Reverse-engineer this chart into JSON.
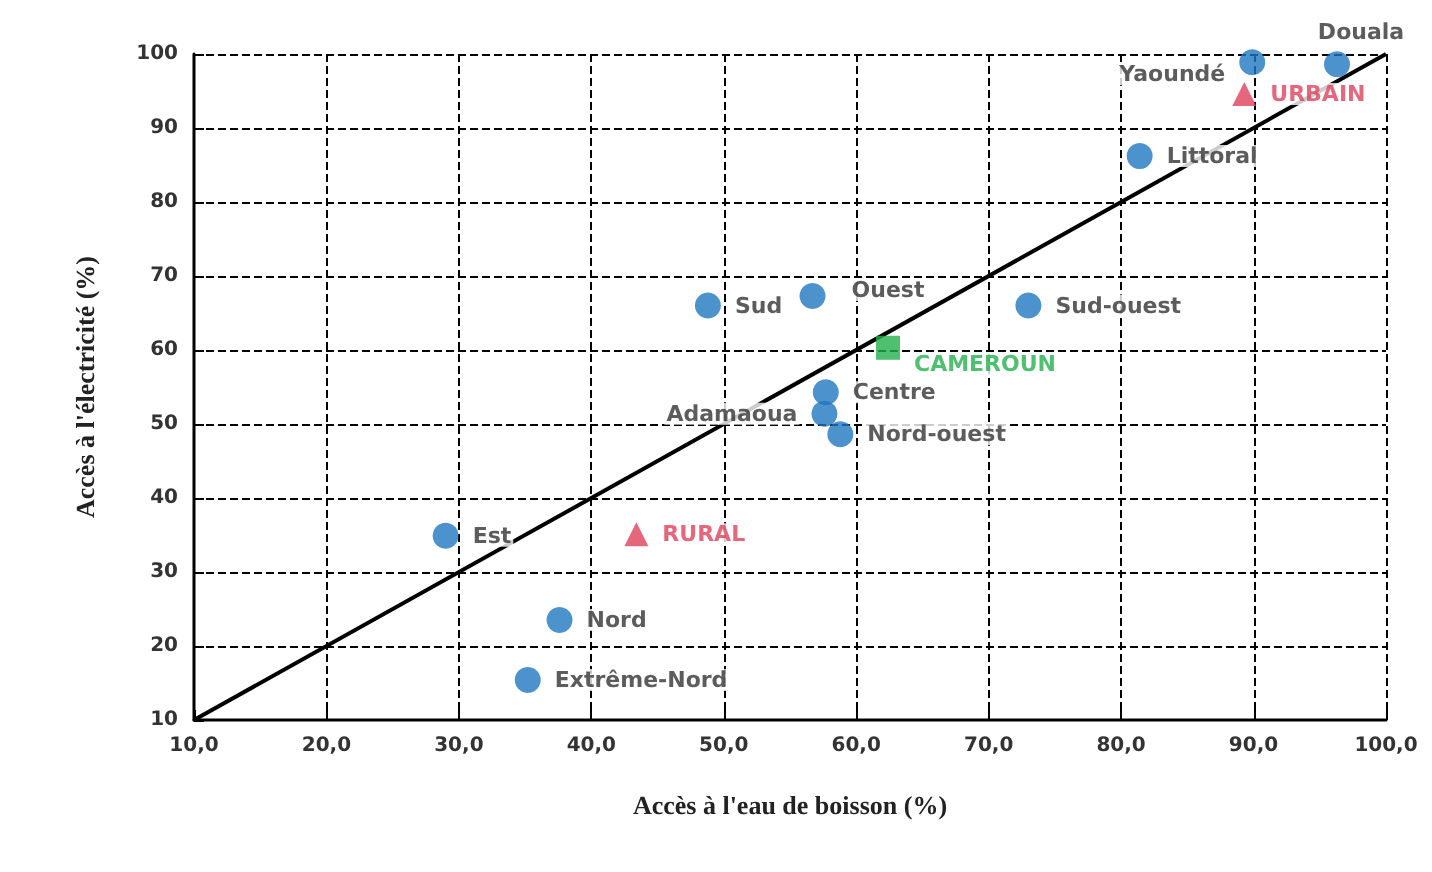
{
  "chart_data": {
    "type": "scatter",
    "xlabel": "Accès à l'eau de boisson (%)",
    "ylabel": "Accès à l'électricité (%)",
    "xlim": [
      10,
      100
    ],
    "ylim": [
      10,
      100
    ],
    "xticks": [
      {
        "value": 10,
        "label": "10,0"
      },
      {
        "value": 20,
        "label": "20,0"
      },
      {
        "value": 30,
        "label": "30,0"
      },
      {
        "value": 40,
        "label": "40,0"
      },
      {
        "value": 50,
        "label": "50,0"
      },
      {
        "value": 60,
        "label": "60,0"
      },
      {
        "value": 70,
        "label": "70,0"
      },
      {
        "value": 80,
        "label": "80,0"
      },
      {
        "value": 90,
        "label": "90,0"
      },
      {
        "value": 100,
        "label": "100,0"
      }
    ],
    "yticks": [
      10,
      20,
      30,
      40,
      50,
      60,
      70,
      80,
      90,
      100
    ],
    "grid": true,
    "series": [
      {
        "marker": "circle",
        "color": "#1f77c0",
        "x": [
          96.3,
          89.9,
          81.4,
          73.0,
          48.8,
          56.7,
          57.7,
          57.6,
          58.8,
          29.0,
          37.6,
          35.2
        ],
        "values": [
          98.6,
          98.9,
          86.2,
          66.0,
          66.0,
          67.3,
          54.3,
          51.4,
          48.6,
          34.9,
          23.5,
          15.4
        ],
        "value_labels": [
          "Douala",
          "Yaoundé",
          "Littoral",
          "Sud-ouest",
          "Sud",
          "Ouest",
          "Centre",
          "Adamaoua",
          "Nord-ouest",
          "Est",
          "Nord",
          "Extrême-Nord"
        ]
      },
      {
        "marker": "triangle",
        "color": "#e0405a",
        "x": [
          89.3,
          43.4
        ],
        "values": [
          94.6,
          35.1
        ],
        "value_labels": [
          "URBAIN",
          "RURAL"
        ]
      },
      {
        "marker": "square",
        "color": "#22b04b",
        "x": [
          62.4
        ],
        "values": [
          60.3
        ],
        "value_labels": [
          "CAMEROUN"
        ]
      },
      {
        "type": "line",
        "marker": "none",
        "color": "#000000",
        "x": [
          10,
          100
        ],
        "values": [
          10,
          100
        ]
      }
    ]
  }
}
